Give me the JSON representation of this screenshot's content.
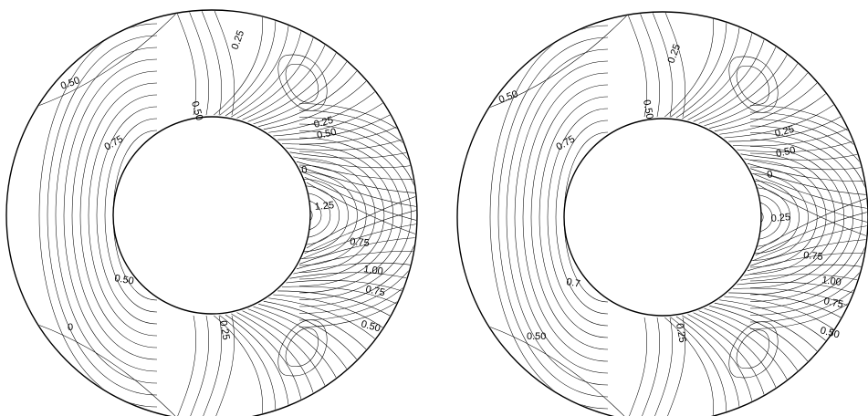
{
  "panels": [
    {
      "id": "left",
      "contour_labels": [
        "0.50",
        "0.25",
        "0.50",
        "0.75",
        "0.25",
        "0.50",
        "0",
        "1.25",
        "0.75",
        "1.00",
        "0.75",
        "0.50",
        "0.25",
        "0",
        "0.50"
      ]
    },
    {
      "id": "right",
      "contour_labels": [
        "0.50",
        "0.25",
        "0.50",
        "0.75",
        "0.25",
        "0.50",
        "0",
        "0.25",
        "0.75",
        "1.00",
        "0.75",
        "0.50",
        "0.25",
        "0.50",
        "0.7"
      ]
    }
  ]
}
